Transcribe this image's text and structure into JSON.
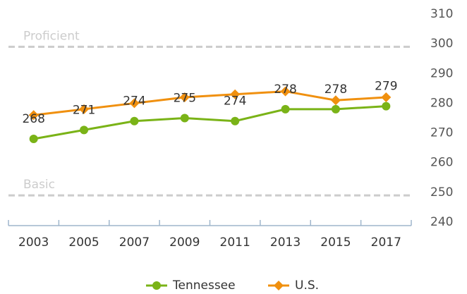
{
  "chart_data": {
    "type": "line",
    "categories": [
      "2003",
      "2005",
      "2007",
      "2009",
      "2011",
      "2013",
      "2015",
      "2017"
    ],
    "series": [
      {
        "name": "Tennessee",
        "color": "#7ab317",
        "values": [
          268,
          271,
          274,
          275,
          274,
          278,
          278,
          279
        ],
        "marker": "circle"
      },
      {
        "name": "U.S.",
        "color": "#f0900f",
        "values": [
          276,
          278,
          280,
          282,
          283,
          284,
          281,
          282
        ],
        "marker": "diamond"
      }
    ],
    "data_labels_series": 0,
    "annotations": [
      {
        "label": "Proficient",
        "value": 299
      },
      {
        "label": "Basic",
        "value": 249
      }
    ],
    "ylim": [
      240,
      310
    ],
    "yticks": [
      240,
      250,
      260,
      270,
      280,
      290,
      300,
      310
    ],
    "legend": "bottom"
  }
}
